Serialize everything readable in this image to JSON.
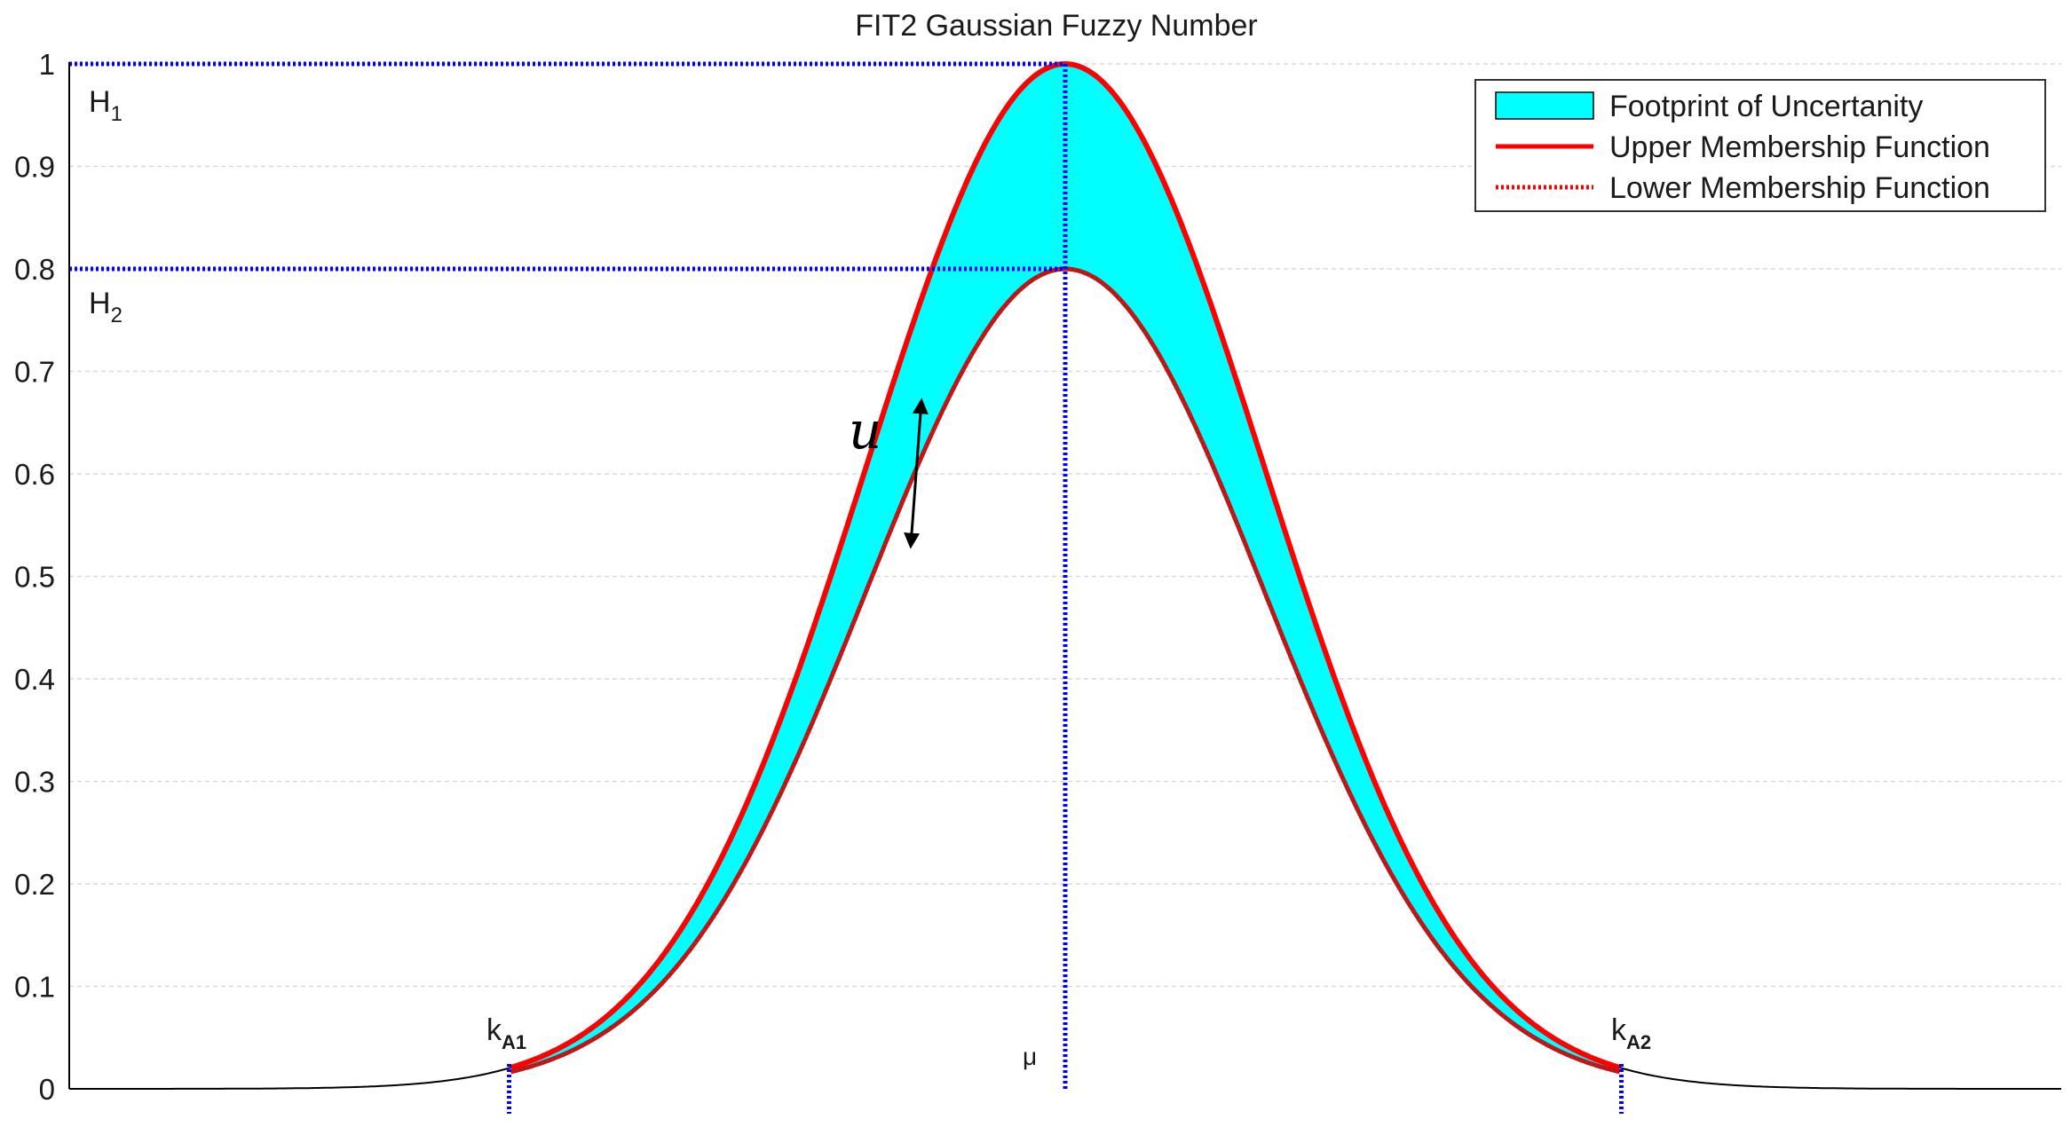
{
  "chart_data": {
    "type": "area",
    "title": "FIT2 Gaussian Fuzzy Number",
    "xlabel": "",
    "ylabel": "",
    "ylim": [
      0,
      1
    ],
    "yticks": [
      "0",
      "0.1",
      "0.2",
      "0.3",
      "0.4",
      "0.5",
      "0.6",
      "0.7",
      "0.8",
      "0.9",
      "1"
    ],
    "ytick_values": [
      0,
      0.1,
      0.2,
      0.3,
      0.4,
      0.5,
      0.6,
      0.7,
      0.8,
      0.9,
      1
    ],
    "grid": true,
    "legend_position": "top-right",
    "xlim": [
      -6,
      6
    ],
    "mu": 0,
    "sigma": 1.2,
    "kA1": -3.35,
    "kA2": 3.35,
    "H1": 1.0,
    "H2": 0.8,
    "series": [
      {
        "name": "Footprint of Uncertanity",
        "kind": "band",
        "color": "#00ffff"
      },
      {
        "name": "Upper Membership Function",
        "kind": "solid",
        "color": "#ff0000",
        "height": 1.0
      },
      {
        "name": "Lower Membership Function",
        "kind": "dotted",
        "color": "#ff0000",
        "height": 0.8
      }
    ],
    "annotations": {
      "h1_main": "H",
      "h1_sub": "1",
      "h2_main": "H",
      "h2_sub": "2",
      "ka1_main": "k",
      "ka1_sub": "A1",
      "ka2_main": "k",
      "ka2_sub": "A2",
      "mu_label": "μ",
      "u_label": "u"
    },
    "colors": {
      "reference_lines": "#0000ff",
      "axis": "#000000",
      "grid": "#d9d9d9",
      "arrow": "#000000"
    }
  }
}
